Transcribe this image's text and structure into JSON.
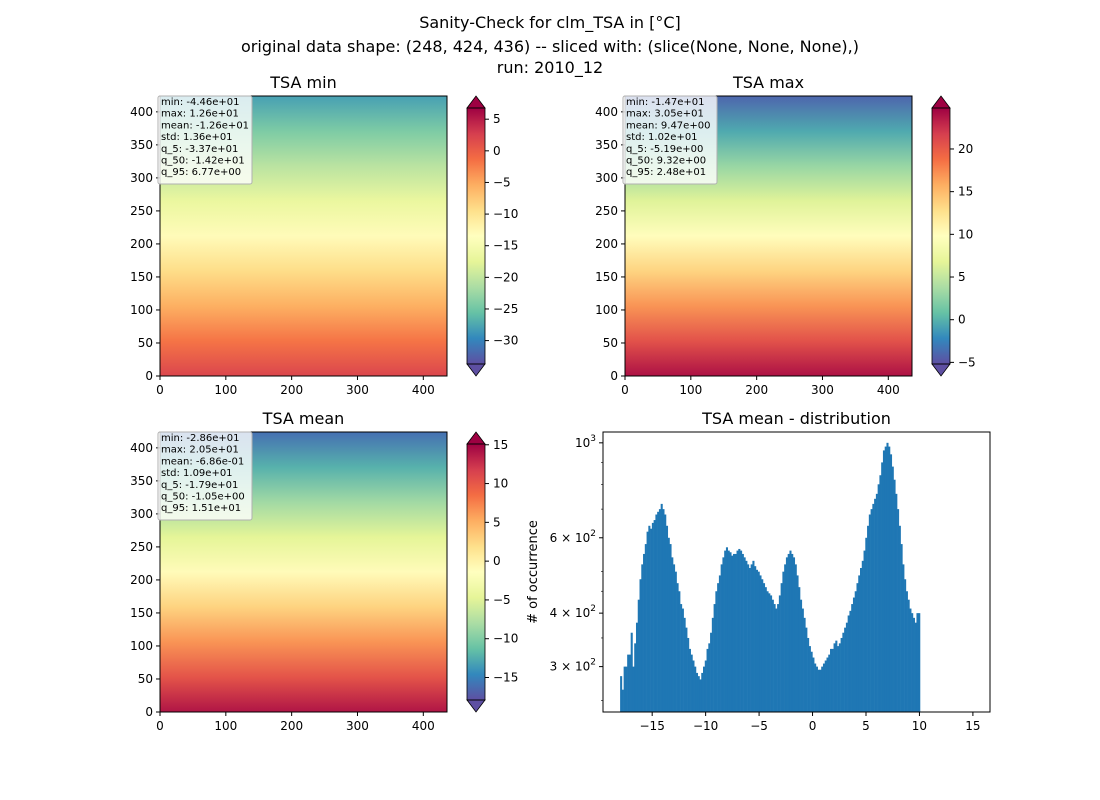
{
  "figure": {
    "title_lines": [
      "Sanity-Check for clm_TSA in [°C]",
      "original data shape: (248, 424, 436) -- sliced with: (slice(None, None, None),)",
      "run: 2010_12"
    ]
  },
  "colors": {
    "hist_bar": "#1f77b4",
    "colormap": "Spectral_r",
    "stops": [
      "#5e4fa2",
      "#3288bd",
      "#66c2a5",
      "#abdda4",
      "#e6f598",
      "#ffffbf",
      "#fee08b",
      "#fdae61",
      "#f46d43",
      "#d53e4f",
      "#9e0142"
    ]
  },
  "chart_data": [
    {
      "type": "heatmap",
      "title": "TSA min",
      "xticks": [
        0,
        100,
        200,
        300,
        400
      ],
      "yticks": [
        0,
        50,
        100,
        150,
        200,
        250,
        300,
        350,
        400
      ],
      "xlim": [
        0,
        436
      ],
      "ylim": [
        0,
        424
      ],
      "stats": [
        "min: -4.46e+01",
        "max: 1.26e+01",
        "mean: -1.26e+01",
        "std: 1.36e+01",
        "q_5: -3.37e+01",
        "q_50: -1.42e+01",
        "q_95: 6.77e+00"
      ],
      "colorbar": {
        "range": [
          -33.7,
          6.77
        ],
        "ticks": [
          5,
          0,
          -5,
          -10,
          -15,
          -20,
          -25,
          -30
        ],
        "extend": "both"
      },
      "gradient": {
        "south": 2,
        "north": -28
      }
    },
    {
      "type": "heatmap",
      "title": "TSA max",
      "xticks": [
        0,
        100,
        200,
        300,
        400
      ],
      "yticks": [
        0,
        50,
        100,
        150,
        200,
        250,
        300,
        350,
        400
      ],
      "xlim": [
        0,
        436
      ],
      "ylim": [
        0,
        424
      ],
      "stats": [
        "min: -1.47e+01",
        "max: 3.05e+01",
        "mean: 9.47e+00",
        "std: 1.02e+01",
        "q_5: -5.19e+00",
        "q_50: 9.32e+00",
        "q_95: 2.48e+01"
      ],
      "colorbar": {
        "range": [
          -5.19,
          24.8
        ],
        "ticks": [
          20,
          15,
          10,
          5,
          0,
          -5
        ],
        "extend": "both"
      },
      "gradient": {
        "south": 24,
        "north": -4
      }
    },
    {
      "type": "heatmap",
      "title": "TSA mean",
      "xticks": [
        0,
        100,
        200,
        300,
        400
      ],
      "yticks": [
        0,
        50,
        100,
        150,
        200,
        250,
        300,
        350,
        400
      ],
      "xlim": [
        0,
        436
      ],
      "ylim": [
        0,
        424
      ],
      "stats": [
        "min: -2.86e+01",
        "max: 2.05e+01",
        "mean: -6.86e-01",
        "std: 1.09e+01",
        "q_5: -1.79e+01",
        "q_50: -1.05e+00",
        "q_95: 1.51e+01"
      ],
      "colorbar": {
        "range": [
          -17.9,
          15.1
        ],
        "ticks": [
          15,
          10,
          5,
          0,
          -5,
          -10,
          -15
        ],
        "extend": "both"
      },
      "gradient": {
        "south": 14,
        "north": -16
      }
    },
    {
      "type": "bar",
      "title": "TSA mean - distribution",
      "ylabel": "# of occurrence",
      "xlim": [
        -19.6,
        16.6
      ],
      "ylim": [
        235,
        1060
      ],
      "yscale": "log",
      "xticks": [
        -15,
        -10,
        -5,
        0,
        5,
        10,
        15
      ],
      "yticks": [
        {
          "value": 300,
          "label": "3 × 10^2"
        },
        {
          "value": 400,
          "label": "4 × 10^2"
        },
        {
          "value": 600,
          "label": "6 × 10^2"
        },
        {
          "value": 1000,
          "label": "10^3"
        }
      ],
      "bin_start": -18,
      "bin_width": 0.165,
      "counts": [
        285,
        265,
        300,
        300,
        320,
        320,
        360,
        300,
        340,
        380,
        430,
        480,
        520,
        550,
        580,
        620,
        640,
        630,
        650,
        660,
        680,
        690,
        700,
        720,
        700,
        680,
        640,
        600,
        580,
        540,
        520,
        500,
        470,
        450,
        420,
        410,
        390,
        370,
        350,
        330,
        320,
        310,
        300,
        290,
        285,
        280,
        290,
        300,
        310,
        330,
        340,
        360,
        390,
        420,
        450,
        470,
        490,
        520,
        540,
        560,
        570,
        560,
        555,
        545,
        550,
        550,
        560,
        565,
        560,
        550,
        540,
        530,
        520,
        510,
        520,
        530,
        515,
        505,
        500,
        490,
        480,
        470,
        460,
        450,
        445,
        440,
        430,
        420,
        410,
        420,
        440,
        470,
        500,
        520,
        540,
        550,
        560,
        550,
        540,
        520,
        490,
        460,
        430,
        410,
        390,
        370,
        350,
        335,
        325,
        315,
        305,
        300,
        295,
        295,
        300,
        305,
        310,
        315,
        320,
        330,
        330,
        340,
        345,
        335,
        340,
        350,
        360,
        370,
        380,
        395,
        405,
        420,
        435,
        450,
        470,
        490,
        510,
        530,
        560,
        600,
        640,
        680,
        700,
        720,
        740,
        760,
        800,
        840,
        900,
        960,
        980,
        1000,
        980,
        940,
        880,
        820,
        760,
        700,
        640,
        580,
        520,
        480,
        450,
        430,
        410,
        400,
        390,
        380,
        400,
        400
      ]
    }
  ]
}
